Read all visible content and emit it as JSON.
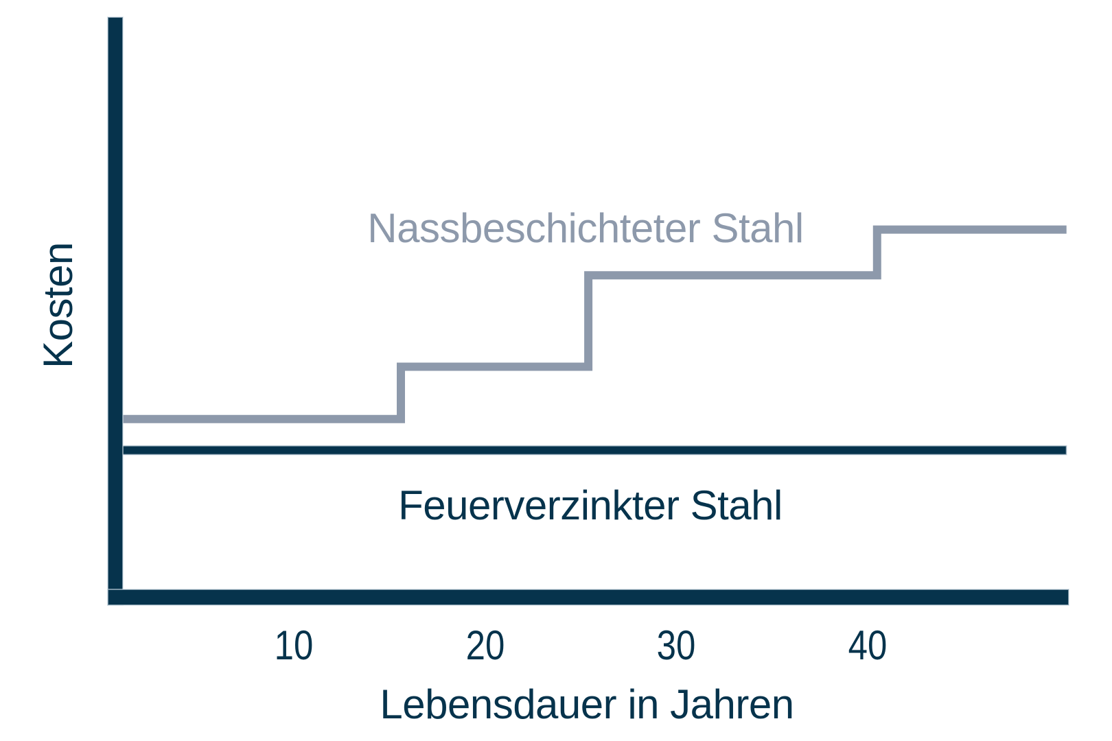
{
  "colors": {
    "navy": "#06334c",
    "gray": "#8d99ab",
    "halo": "#ccd9e2",
    "background": "#ffffff"
  },
  "chart_data": {
    "type": "line",
    "subtype": "step-function-comparison",
    "title": "",
    "xlabel": "Lebensdauer in Jahren",
    "ylabel": "Kosten",
    "x_ticks": [
      10,
      20,
      30,
      40
    ],
    "x_range_years": [
      0,
      50.4
    ],
    "y_scale": "relative cost, axis has no tick labels",
    "grid": false,
    "legend": "inline labels placed next to the lines",
    "series": [
      {
        "name": "Nassbeschichteter Stahl",
        "color": "#8d99ab",
        "style": "step",
        "points_year_cost": [
          [
            0.8,
            39.9
          ],
          [
            15.6,
            39.9
          ],
          [
            15.6,
            51.1
          ],
          [
            25.4,
            51.1
          ],
          [
            25.4,
            70.7
          ],
          [
            40.5,
            70.7
          ],
          [
            40.5,
            80.5
          ],
          [
            50.4,
            80.5
          ]
        ]
      },
      {
        "name": "Feuerverzinkter Stahl",
        "color": "#06334c",
        "style": "constant",
        "points_year_cost": [
          [
            0.8,
            33.2
          ],
          [
            50.4,
            33.2
          ]
        ]
      }
    ]
  }
}
